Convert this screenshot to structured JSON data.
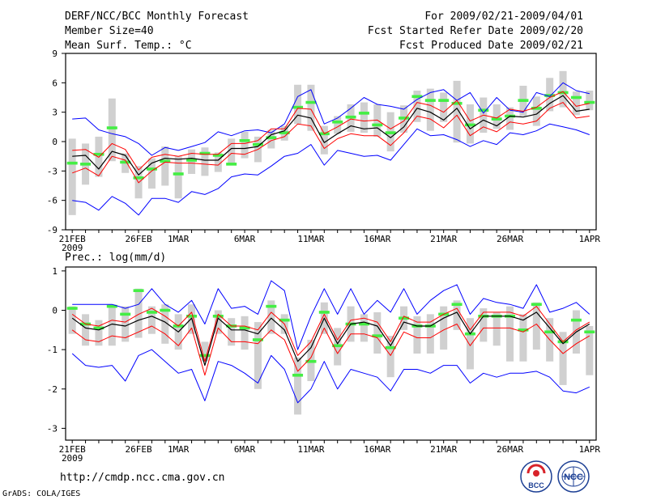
{
  "header": {
    "line1": "DERF/NCC/BCC Monthly Forecast",
    "line2": "Member Size=40",
    "line3": "Mean Surf. Temp.: °C",
    "right1": "For 2009/02/21-2009/04/01",
    "right2": "Fcst Started Refer Date 2009/02/20",
    "right3": "Fcst Produced Date 2009/02/21"
  },
  "footer": {
    "url": "http://cmdp.ncc.cma.gov.cn",
    "credit": "GrADS: COLA/IGES",
    "logo_bcc": "BCC",
    "logo_ncc": "NCC"
  },
  "colors": {
    "envelope": "#0000ff",
    "spread": "#ff0000",
    "mean": "#000000",
    "box": "#d0d0d0",
    "median": "#44ee44"
  },
  "chart_data": [
    {
      "type": "line",
      "title": "Mean Surf. Temp.: °C",
      "xlabel": "",
      "ylabel": "",
      "days": 40,
      "ylim": [
        -9,
        9
      ],
      "yticks": [
        -9,
        -6,
        -3,
        0,
        3,
        6,
        9
      ],
      "xtick_labels": [
        {
          "day": 0,
          "label": "21FEB",
          "sub": "2009"
        },
        {
          "day": 5,
          "label": "26FEB"
        },
        {
          "day": 8,
          "label": "1MAR"
        },
        {
          "day": 13,
          "label": "6MAR"
        },
        {
          "day": 18,
          "label": "11MAR"
        },
        {
          "day": 23,
          "label": "16MAR"
        },
        {
          "day": 28,
          "label": "21MAR"
        },
        {
          "day": 33,
          "label": "26MAR"
        },
        {
          "day": 39,
          "label": "1APR"
        }
      ],
      "series": [
        {
          "name": "max",
          "values": [
            2.3,
            2.4,
            1.2,
            0.8,
            0.5,
            -0.2,
            -1.4,
            -0.6,
            -0.9,
            -0.5,
            -0.1,
            1.0,
            0.6,
            1.1,
            1.2,
            0.9,
            1.8,
            4.6,
            5.3,
            1.8,
            2.4,
            3.4,
            4.5,
            3.8,
            3.6,
            3.3,
            4.3,
            5.0,
            5.3,
            4.2,
            5.0,
            2.9,
            4.5,
            3.2,
            3.0,
            5.0,
            4.6,
            6.0,
            5.2,
            4.9
          ]
        },
        {
          "name": "upper",
          "values": [
            -0.9,
            -0.8,
            -1.6,
            -0.2,
            -0.8,
            -2.9,
            -1.6,
            -1.3,
            -1.5,
            -1.2,
            -1.3,
            -1.3,
            -0.2,
            -0.2,
            0.1,
            1.3,
            1.3,
            3.4,
            3.3,
            0.8,
            1.5,
            2.3,
            2.1,
            2.2,
            1.3,
            2.1,
            4.0,
            3.7,
            3.0,
            4.2,
            2.1,
            2.7,
            2.4,
            3.3,
            3.1,
            3.5,
            4.5,
            5.1,
            3.6,
            3.9
          ]
        },
        {
          "name": "mean",
          "values": [
            -1.5,
            -1.4,
            -2.8,
            -1.0,
            -1.4,
            -3.4,
            -2.2,
            -1.7,
            -1.8,
            -1.7,
            -1.9,
            -1.9,
            -0.7,
            -0.7,
            -0.5,
            0.7,
            1.1,
            2.7,
            2.4,
            -0.1,
            0.8,
            1.6,
            1.3,
            1.4,
            0.4,
            1.5,
            3.4,
            3.0,
            2.2,
            3.4,
            1.3,
            2.2,
            1.6,
            2.6,
            2.5,
            2.8,
            3.9,
            4.7,
            3.1,
            3.3
          ]
        },
        {
          "name": "lower",
          "values": [
            -3.2,
            -2.7,
            -3.5,
            -1.5,
            -1.9,
            -4.2,
            -3.0,
            -2.1,
            -2.2,
            -2.2,
            -2.3,
            -2.4,
            -1.2,
            -1.3,
            -0.8,
            0.1,
            0.5,
            1.8,
            1.6,
            -0.7,
            0.3,
            0.8,
            0.6,
            0.6,
            -0.4,
            0.9,
            2.6,
            2.3,
            1.4,
            2.7,
            0.6,
            1.5,
            1.0,
            2.0,
            1.8,
            2.1,
            3.4,
            4.0,
            2.4,
            2.6
          ]
        },
        {
          "name": "min",
          "values": [
            -6.0,
            -6.2,
            -7.0,
            -5.6,
            -6.3,
            -7.5,
            -5.8,
            -5.8,
            -6.2,
            -5.1,
            -5.4,
            -4.8,
            -3.6,
            -3.3,
            -3.4,
            -2.5,
            -1.5,
            -1.2,
            -0.3,
            -2.4,
            -0.9,
            -1.2,
            -1.5,
            -1.4,
            -1.9,
            -0.3,
            1.3,
            0.6,
            0.7,
            0.2,
            -0.5,
            0.1,
            -0.3,
            0.9,
            0.7,
            1.1,
            1.8,
            1.5,
            1.2,
            0.7
          ]
        },
        {
          "name": "median",
          "values": [
            -2.2,
            -2.3,
            -1.3,
            1.4,
            -2.1,
            -3.7,
            -2.8,
            -2.0,
            -3.3,
            -1.9,
            -1.2,
            -1.4,
            -2.3,
            0.1,
            -0.3,
            0.4,
            0.9,
            3.5,
            4.0,
            0.8,
            2.0,
            2.5,
            2.9,
            1.7,
            0.9,
            2.4,
            4.6,
            4.2,
            4.2,
            3.9,
            1.7,
            3.2,
            2.3,
            2.6,
            4.2,
            3.4,
            4.7,
            5.0,
            4.5,
            4.0
          ]
        },
        {
          "name": "box_high",
          "values": [
            0.3,
            -0.2,
            0.5,
            4.4,
            -1.2,
            -2.5,
            -1.7,
            -0.5,
            -1.5,
            -0.8,
            -0.6,
            -1.1,
            0.3,
            1.0,
            0.5,
            1.2,
            1.6,
            5.8,
            5.8,
            1.6,
            2.6,
            3.8,
            4.0,
            3.8,
            3.0,
            3.7,
            5.2,
            5.4,
            5.0,
            6.2,
            3.8,
            4.5,
            3.8,
            3.5,
            5.7,
            4.6,
            6.5,
            7.2,
            5.1,
            5.2
          ]
        },
        {
          "name": "box_low",
          "values": [
            -7.5,
            -4.4,
            -3.6,
            -2.0,
            -3.2,
            -5.8,
            -4.8,
            -4.5,
            -5.8,
            -3.3,
            -3.5,
            -3.1,
            -2.4,
            -1.7,
            -2.1,
            -0.7,
            0.1,
            1.8,
            1.1,
            -1.3,
            0.8,
            1.0,
            0.9,
            0.5,
            -1.0,
            0.9,
            2.0,
            1.1,
            2.0,
            -0.1,
            -0.2,
            0.9,
            1.3,
            1.2,
            2.6,
            1.6,
            3.1,
            3.5,
            2.7,
            3.2
          ]
        }
      ]
    },
    {
      "type": "line",
      "title": "Prec.: log(mm/d)",
      "xlabel": "",
      "ylabel": "",
      "days": 40,
      "ylim": [
        -3.3,
        1.1
      ],
      "yticks": [
        -3,
        -2,
        -1,
        0,
        1
      ],
      "xtick_labels": [
        {
          "day": 0,
          "label": "21FEB",
          "sub": "2009"
        },
        {
          "day": 5,
          "label": "26FEB"
        },
        {
          "day": 8,
          "label": "1MAR"
        },
        {
          "day": 13,
          "label": "6MAR"
        },
        {
          "day": 18,
          "label": "11MAR"
        },
        {
          "day": 23,
          "label": "16MAR"
        },
        {
          "day": 28,
          "label": "21MAR"
        },
        {
          "day": 33,
          "label": "26MAR"
        },
        {
          "day": 39,
          "label": "1APR"
        }
      ],
      "series": [
        {
          "name": "max",
          "values": [
            0.15,
            0.15,
            0.15,
            0.15,
            0.05,
            0.15,
            0.55,
            0.15,
            -0.05,
            0.25,
            -0.35,
            0.55,
            0.05,
            0.1,
            -0.1,
            0.75,
            0.5,
            -1.0,
            -0.15,
            0.55,
            -0.1,
            0.55,
            -0.1,
            0.25,
            -0.05,
            0.55,
            -0.1,
            0.25,
            0.5,
            0.65,
            -0.1,
            0.3,
            0.2,
            0.15,
            0.05,
            0.65,
            -0.05,
            0.05,
            0.2,
            -0.1
          ]
        },
        {
          "name": "upper",
          "values": [
            -0.1,
            -0.35,
            -0.4,
            -0.25,
            -0.3,
            -0.1,
            0.05,
            -0.15,
            -0.4,
            -0.05,
            -1.3,
            -0.1,
            -0.4,
            -0.4,
            -0.5,
            -0.05,
            -0.35,
            -1.15,
            -0.8,
            -0.1,
            -0.75,
            -0.25,
            -0.2,
            -0.3,
            -0.8,
            -0.15,
            -0.3,
            -0.3,
            -0.1,
            0.05,
            -0.5,
            -0.05,
            -0.05,
            -0.05,
            -0.15,
            0.1,
            -0.35,
            -0.8,
            -0.5,
            -0.3
          ]
        },
        {
          "name": "mean",
          "values": [
            -0.2,
            -0.45,
            -0.5,
            -0.35,
            -0.4,
            -0.25,
            -0.15,
            -0.3,
            -0.55,
            -0.2,
            -1.4,
            -0.2,
            -0.5,
            -0.5,
            -0.6,
            -0.2,
            -0.5,
            -1.3,
            -0.95,
            -0.2,
            -0.85,
            -0.35,
            -0.3,
            -0.4,
            -0.9,
            -0.3,
            -0.4,
            -0.4,
            -0.2,
            -0.05,
            -0.6,
            -0.15,
            -0.15,
            -0.15,
            -0.25,
            -0.05,
            -0.45,
            -0.85,
            -0.55,
            -0.35
          ]
        },
        {
          "name": "lower",
          "values": [
            -0.5,
            -0.75,
            -0.8,
            -0.65,
            -0.7,
            -0.55,
            -0.4,
            -0.6,
            -0.9,
            -0.45,
            -1.65,
            -0.45,
            -0.8,
            -0.8,
            -0.85,
            -0.5,
            -0.75,
            -1.55,
            -1.2,
            -0.45,
            -1.1,
            -0.6,
            -0.6,
            -0.7,
            -1.15,
            -0.55,
            -0.7,
            -0.7,
            -0.5,
            -0.35,
            -0.9,
            -0.45,
            -0.45,
            -0.45,
            -0.55,
            -0.35,
            -0.75,
            -1.1,
            -0.85,
            -0.65
          ]
        },
        {
          "name": "min",
          "values": [
            -1.1,
            -1.4,
            -1.45,
            -1.4,
            -1.8,
            -1.15,
            -1.0,
            -1.3,
            -1.6,
            -1.5,
            -2.3,
            -1.3,
            -1.4,
            -1.6,
            -1.85,
            -1.15,
            -1.5,
            -2.35,
            -2.0,
            -1.3,
            -2.0,
            -1.5,
            -1.6,
            -1.7,
            -2.05,
            -1.5,
            -1.5,
            -1.6,
            -1.4,
            -1.4,
            -1.85,
            -1.6,
            -1.7,
            -1.6,
            -1.6,
            -1.55,
            -1.7,
            -2.05,
            -2.1,
            -1.95
          ]
        },
        {
          "name": "median",
          "values": [
            0.05,
            -0.35,
            -0.45,
            0.1,
            -0.1,
            0.5,
            -0.05,
            0.0,
            -0.4,
            -0.15,
            -1.15,
            -0.15,
            -0.4,
            -0.45,
            -0.75,
            0.1,
            -0.25,
            -1.65,
            -1.3,
            -0.05,
            -0.9,
            -0.35,
            -0.35,
            -0.65,
            -0.95,
            -0.2,
            -0.4,
            -0.4,
            -0.1,
            0.15,
            -0.6,
            -0.15,
            -0.15,
            -0.15,
            -0.5,
            0.15,
            -0.55,
            -0.8,
            -0.25,
            -0.55
          ]
        },
        {
          "name": "box_high",
          "values": [
            0.1,
            -0.1,
            -0.25,
            0.15,
            0.1,
            0.55,
            0.1,
            0.15,
            -0.1,
            0.15,
            -0.8,
            0.0,
            -0.2,
            -0.15,
            -0.3,
            0.25,
            -0.1,
            -1.2,
            -0.75,
            0.2,
            -0.45,
            0.1,
            -0.1,
            -0.05,
            -0.65,
            0.1,
            -0.15,
            -0.1,
            0.1,
            0.25,
            -0.2,
            0.05,
            -0.05,
            0.1,
            -0.1,
            0.2,
            -0.2,
            -0.55,
            0.0,
            -0.4
          ]
        },
        {
          "name": "box_low",
          "values": [
            -0.6,
            -0.9,
            -0.9,
            -0.9,
            -0.8,
            -0.7,
            -0.6,
            -0.85,
            -1.0,
            -0.6,
            -1.3,
            -0.6,
            -0.9,
            -1.0,
            -2.0,
            -0.6,
            -0.6,
            -2.65,
            -1.8,
            -0.6,
            -1.4,
            -0.8,
            -0.8,
            -1.1,
            -1.7,
            -0.5,
            -1.1,
            -1.1,
            -1.0,
            -0.5,
            -1.5,
            -0.8,
            -0.9,
            -1.3,
            -1.3,
            -1.0,
            -1.3,
            -1.9,
            -1.1,
            -1.65
          ]
        }
      ]
    }
  ]
}
